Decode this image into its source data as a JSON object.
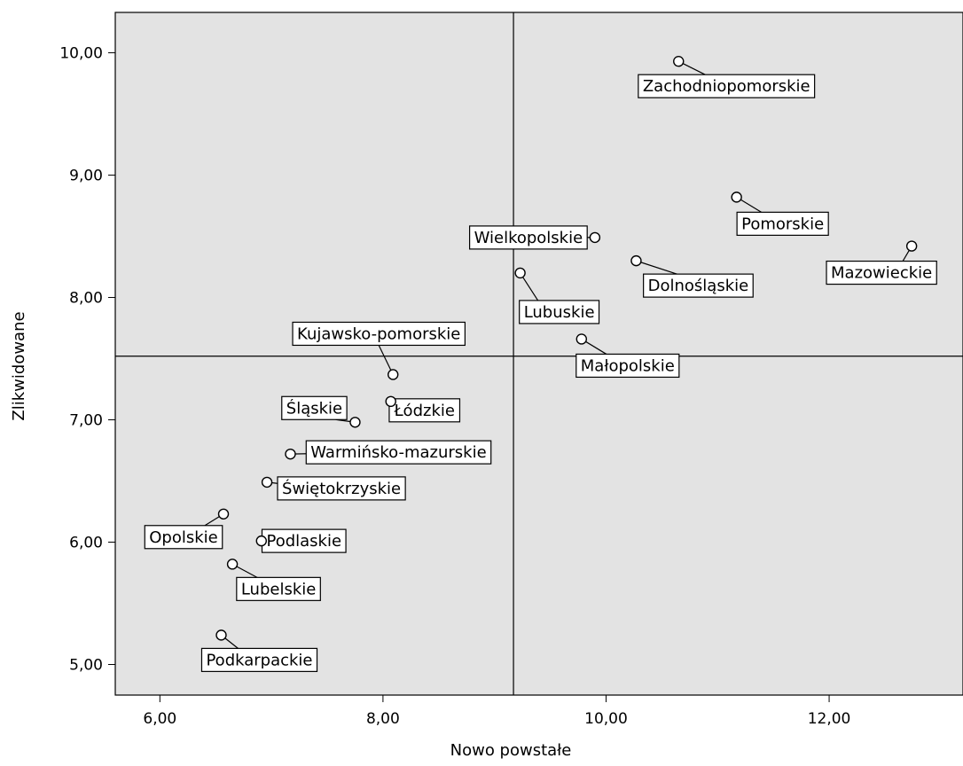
{
  "chart_data": {
    "type": "scatter",
    "xlabel": "Nowo powstałe",
    "ylabel": "Zlikwidowane",
    "xlim": [
      5.6,
      13.2
    ],
    "ylim": [
      4.75,
      10.33
    ],
    "x_ticks": [
      {
        "value": 6,
        "label": "6,00"
      },
      {
        "value": 8,
        "label": "8,00"
      },
      {
        "value": 10,
        "label": "10,00"
      },
      {
        "value": 12,
        "label": "12,00"
      }
    ],
    "y_ticks": [
      {
        "value": 5,
        "label": "5,00"
      },
      {
        "value": 6,
        "label": "6,00"
      },
      {
        "value": 7,
        "label": "7,00"
      },
      {
        "value": 8,
        "label": "8,00"
      },
      {
        "value": 9,
        "label": "9,00"
      },
      {
        "value": 10,
        "label": "10,00"
      }
    ],
    "reference_lines": {
      "x": 9.17,
      "y": 7.52
    },
    "grid": false,
    "background": "#e3e3e3",
    "points": [
      {
        "label": "Zachodniopomorskie",
        "x": 10.65,
        "y": 9.93
      },
      {
        "label": "Pomorskie",
        "x": 11.17,
        "y": 8.82
      },
      {
        "label": "Mazowieckie",
        "x": 12.74,
        "y": 8.42
      },
      {
        "label": "Wielkopolskie",
        "x": 9.9,
        "y": 8.49
      },
      {
        "label": "Dolnośląskie",
        "x": 10.27,
        "y": 8.3
      },
      {
        "label": "Lubuskie",
        "x": 9.23,
        "y": 8.2
      },
      {
        "label": "Małopolskie",
        "x": 9.78,
        "y": 7.66
      },
      {
        "label": "Kujawsko-pomorskie",
        "x": 8.09,
        "y": 7.37
      },
      {
        "label": "Łódzkie",
        "x": 8.07,
        "y": 7.15
      },
      {
        "label": "Śląskie",
        "x": 7.75,
        "y": 6.98
      },
      {
        "label": "Warmińsko-mazurskie",
        "x": 7.17,
        "y": 6.72
      },
      {
        "label": "Świętokrzyskie",
        "x": 6.96,
        "y": 6.49
      },
      {
        "label": "Opolskie",
        "x": 6.57,
        "y": 6.23
      },
      {
        "label": "Podlaskie",
        "x": 6.91,
        "y": 6.01
      },
      {
        "label": "Lubelskie",
        "x": 6.65,
        "y": 5.82
      },
      {
        "label": "Podkarpackie",
        "x": 6.55,
        "y": 5.24
      }
    ]
  }
}
